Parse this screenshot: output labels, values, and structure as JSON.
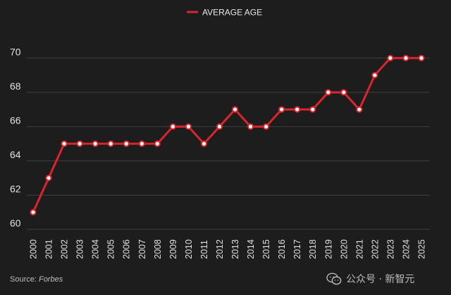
{
  "chart_data": {
    "type": "line",
    "legend": "top-center",
    "grid": true,
    "ylim": [
      60,
      71
    ],
    "yticks": [
      "60",
      "62",
      "64",
      "66",
      "68",
      "70"
    ],
    "x": [
      "2000",
      "2001",
      "2002",
      "2003",
      "2004",
      "2005",
      "2006",
      "2007",
      "2008",
      "2009",
      "2010",
      "2011",
      "2012",
      "2013",
      "2014",
      "2015",
      "2016",
      "2017",
      "2018",
      "2019",
      "2020",
      "2021",
      "2022",
      "2023",
      "2024",
      "2025"
    ],
    "series": [
      {
        "name": "AVERAGE AGE",
        "color": "#d9252b",
        "values": [
          61,
          63,
          65,
          65,
          65,
          65,
          65,
          65,
          65,
          66,
          66,
          65,
          66,
          67,
          66,
          66,
          67,
          67,
          67,
          68,
          68,
          67,
          69,
          70,
          70,
          70
        ]
      }
    ]
  },
  "source": {
    "prefix": "Source: ",
    "name": "Forbes"
  },
  "watermark": {
    "text": "公众号 · 新智元",
    "icon": "wechat-logo"
  },
  "colors": {
    "background": "#1d1d1d",
    "grid": "#3f3f3f",
    "marker_fill": "#ffffff"
  }
}
